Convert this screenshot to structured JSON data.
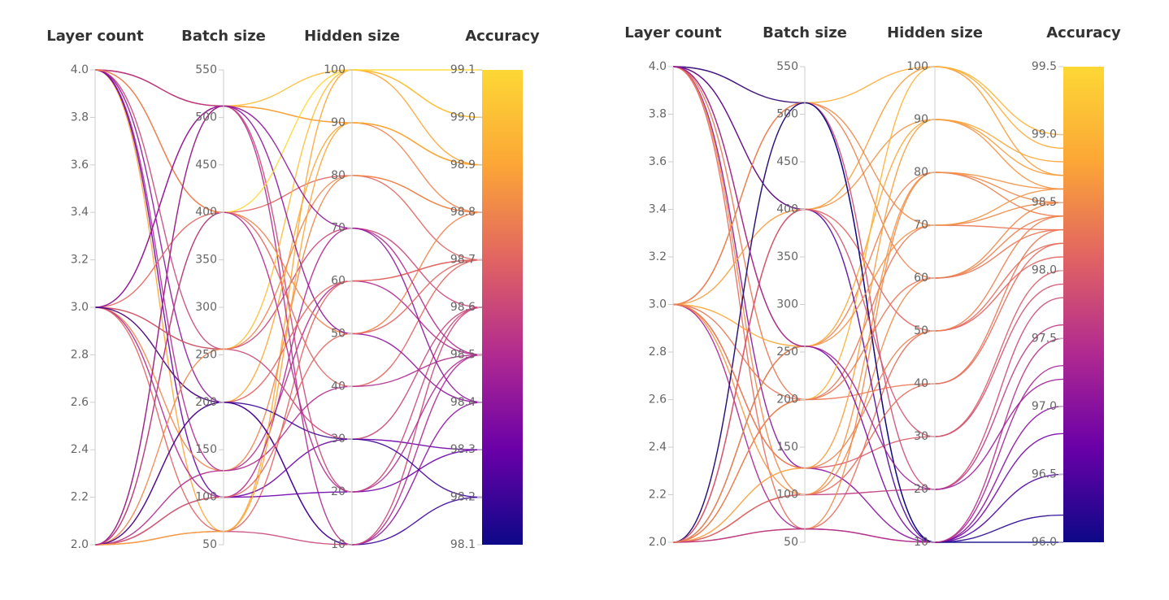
{
  "chart_data": [
    {
      "type": "parallel_coordinates",
      "axes": [
        {
          "label": "Layer count",
          "lim": [
            2,
            4
          ],
          "ticks": [
            {
              "value": 2,
              "label": "2.0"
            },
            2.2,
            2.4,
            2.6,
            2.8,
            {
              "value": 3,
              "label": "3.0"
            },
            3.2,
            3.4,
            3.6,
            3.8,
            {
              "value": 4,
              "label": "4.0"
            }
          ]
        },
        {
          "label": "Batch size",
          "lim": [
            50,
            550
          ],
          "ticks": [
            50,
            100,
            150,
            200,
            250,
            300,
            350,
            400,
            450,
            500,
            550
          ]
        },
        {
          "label": "Hidden size",
          "lim": [
            10,
            100
          ],
          "ticks": [
            10,
            20,
            30,
            40,
            50,
            60,
            70,
            80,
            90,
            100
          ]
        },
        {
          "label": "Accuracy",
          "lim": [
            98.1,
            99.1
          ],
          "ticks": [
            98.1,
            98.2,
            98.3,
            98.4,
            98.5,
            98.6,
            98.7,
            98.8,
            98.9,
            {
              "value": 99,
              "label": "99.0"
            },
            99.1
          ]
        }
      ],
      "colorscale": [
        "#0d0887",
        "#6a00a8",
        "#b12a90",
        "#e16462",
        "#fca636",
        "#fdd835"
      ],
      "lines": [
        [
          4,
          512,
          100,
          99.0
        ],
        [
          4,
          512,
          90,
          98.8
        ],
        [
          4,
          400,
          80,
          98.7
        ],
        [
          4,
          256,
          70,
          98.6
        ],
        [
          4,
          128,
          60,
          98.5
        ],
        [
          4,
          64,
          100,
          98.9
        ],
        [
          4,
          100,
          30,
          98.3
        ],
        [
          4,
          200,
          10,
          98.4
        ],
        [
          4,
          512,
          10,
          98.5
        ],
        [
          4,
          400,
          50,
          98.8
        ],
        [
          3,
          512,
          20,
          98.6
        ],
        [
          3,
          400,
          40,
          98.7
        ],
        [
          3,
          256,
          100,
          99.0
        ],
        [
          3,
          200,
          90,
          98.9
        ],
        [
          3,
          128,
          80,
          98.8
        ],
        [
          3,
          100,
          70,
          98.5
        ],
        [
          3,
          64,
          60,
          98.7
        ],
        [
          3,
          512,
          50,
          98.4
        ],
        [
          3,
          256,
          30,
          98.6
        ],
        [
          3,
          200,
          10,
          98.2
        ],
        [
          2,
          512,
          90,
          98.9
        ],
        [
          2,
          400,
          100,
          99.1
        ],
        [
          2,
          256,
          80,
          98.8
        ],
        [
          2,
          200,
          60,
          98.7
        ],
        [
          2,
          128,
          40,
          98.5
        ],
        [
          2,
          100,
          20,
          98.3
        ],
        [
          2,
          64,
          10,
          98.6
        ],
        [
          2,
          512,
          70,
          98.4
        ],
        [
          2,
          200,
          30,
          98.2
        ],
        [
          2,
          100,
          50,
          98.7
        ],
        [
          2,
          64,
          90,
          98.9
        ],
        [
          2,
          400,
          20,
          98.5
        ]
      ]
    },
    {
      "type": "parallel_coordinates",
      "axes": [
        {
          "label": "Layer count",
          "lim": [
            2,
            4
          ],
          "ticks": [
            {
              "value": 2,
              "label": "2.0"
            },
            2.2,
            2.4,
            2.6,
            2.8,
            {
              "value": 3,
              "label": "3.0"
            },
            3.2,
            3.4,
            3.6,
            3.8,
            {
              "value": 4,
              "label": "4.0"
            }
          ]
        },
        {
          "label": "Batch size",
          "lim": [
            50,
            550
          ],
          "ticks": [
            50,
            100,
            150,
            200,
            250,
            300,
            350,
            400,
            450,
            500,
            550
          ]
        },
        {
          "label": "Hidden size",
          "lim": [
            10,
            100
          ],
          "ticks": [
            10,
            20,
            30,
            40,
            50,
            60,
            70,
            80,
            90,
            100
          ]
        },
        {
          "label": "Accuracy",
          "lim": [
            96,
            99.5
          ],
          "ticks": [
            {
              "value": 96,
              "label": "96.0"
            },
            96.5,
            {
              "value": 97,
              "label": "97.0"
            },
            97.5,
            {
              "value": 98,
              "label": "98.0"
            },
            98.5,
            {
              "value": 99,
              "label": "99.0"
            },
            99.5
          ]
        }
      ],
      "colorscale": [
        "#0d0887",
        "#6a00a8",
        "#b12a90",
        "#e16462",
        "#fca636",
        "#fdd835"
      ],
      "lines": [
        [
          4,
          512,
          100,
          98.9
        ],
        [
          4,
          512,
          10,
          96.2
        ],
        [
          4,
          400,
          90,
          98.6
        ],
        [
          4,
          256,
          80,
          98.4
        ],
        [
          4,
          200,
          70,
          98.3
        ],
        [
          4,
          128,
          10,
          97.0
        ],
        [
          4,
          100,
          60,
          98.5
        ],
        [
          4,
          64,
          50,
          98.2
        ],
        [
          4,
          400,
          10,
          96.5
        ],
        [
          3,
          512,
          20,
          97.8
        ],
        [
          3,
          400,
          100,
          98.7
        ],
        [
          3,
          256,
          90,
          98.8
        ],
        [
          3,
          200,
          40,
          98.3
        ],
        [
          3,
          128,
          30,
          98.0
        ],
        [
          3,
          100,
          80,
          98.6
        ],
        [
          3,
          64,
          10,
          97.3
        ],
        [
          3,
          512,
          70,
          98.5
        ],
        [
          2,
          512,
          60,
          98.4
        ],
        [
          2,
          400,
          50,
          98.1
        ],
        [
          2,
          256,
          10,
          96.8
        ],
        [
          2,
          200,
          100,
          99.0
        ],
        [
          2,
          128,
          90,
          98.7
        ],
        [
          2,
          100,
          20,
          97.6
        ],
        [
          2,
          64,
          80,
          98.5
        ],
        [
          2,
          512,
          10,
          96.0
        ],
        [
          2,
          400,
          30,
          97.9
        ],
        [
          2,
          256,
          70,
          98.6
        ],
        [
          2,
          100,
          40,
          98.2
        ],
        [
          2,
          64,
          10,
          97.5
        ],
        [
          2,
          200,
          60,
          98.3
        ],
        [
          3,
          128,
          50,
          98.4
        ],
        [
          4,
          256,
          20,
          97.2
        ]
      ]
    }
  ]
}
